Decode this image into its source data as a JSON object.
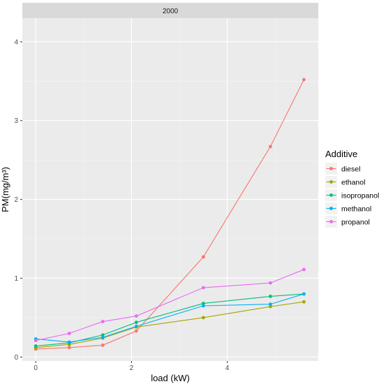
{
  "chart_data": {
    "type": "line",
    "facet_label": "2000",
    "xlabel": "load (kW)",
    "ylabel": "PM(mg/m³)",
    "xlim": [
      -0.28,
      5.9
    ],
    "ylim": [
      -0.05,
      4.3
    ],
    "x_ticks": [
      0,
      2,
      4
    ],
    "y_ticks": [
      0,
      1,
      2,
      3,
      4
    ],
    "grid": true,
    "legend_position": "right",
    "legend_title": "Additive",
    "series": [
      {
        "name": "diesel",
        "color": "#F8766D",
        "x": [
          0,
          0.7,
          1.4,
          2.1,
          3.5,
          4.9,
          5.6
        ],
        "y": [
          0.1,
          0.12,
          0.15,
          0.33,
          1.27,
          2.67,
          3.52
        ]
      },
      {
        "name": "ethanol",
        "color": "#A3A500",
        "x": [
          0,
          0.7,
          1.4,
          2.1,
          3.5,
          4.9,
          5.6
        ],
        "y": [
          0.12,
          0.16,
          0.24,
          0.38,
          0.5,
          0.64,
          0.7
        ]
      },
      {
        "name": "isopropanol",
        "color": "#00BF7D",
        "x": [
          0,
          0.7,
          1.4,
          2.1,
          3.5,
          4.9,
          5.6
        ],
        "y": [
          0.14,
          0.18,
          0.28,
          0.44,
          0.68,
          0.77,
          0.8
        ]
      },
      {
        "name": "methanol",
        "color": "#00B0F6",
        "x": [
          0,
          0.7,
          1.4,
          2.1,
          3.5,
          4.9,
          5.6
        ],
        "y": [
          0.23,
          0.19,
          0.25,
          0.39,
          0.65,
          0.67,
          0.8
        ]
      },
      {
        "name": "propanol",
        "color": "#E76BF3",
        "x": [
          0,
          0.7,
          1.4,
          2.1,
          3.5,
          4.9,
          5.6
        ],
        "y": [
          0.21,
          0.3,
          0.45,
          0.52,
          0.88,
          0.94,
          1.11
        ]
      }
    ]
  }
}
